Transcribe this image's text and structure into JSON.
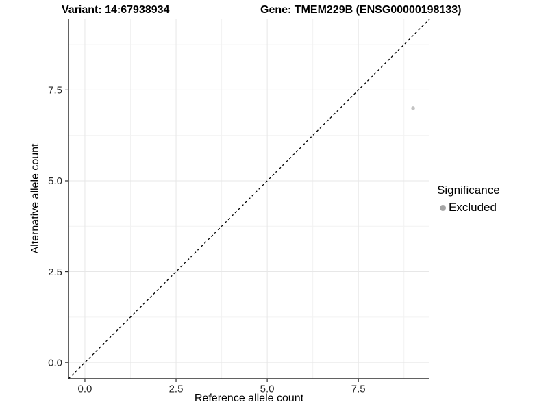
{
  "header": {
    "variant_title": "Variant: 14:67938934",
    "gene_title": "Gene: TMEM229B (ENSG00000198133)"
  },
  "axes": {
    "x_label": "Reference allele count",
    "y_label": "Alternative allele count",
    "x_tick_labels": [
      "0.0",
      "2.5",
      "5.0",
      "7.5"
    ],
    "y_tick_labels": [
      "0.0",
      "2.5",
      "5.0",
      "7.5"
    ]
  },
  "legend": {
    "title": "Significance",
    "items": [
      {
        "label": "Excluded",
        "color": "#a5a5a5"
      }
    ]
  },
  "colors": {
    "background": "#ffffff",
    "grid_major": "#e7e7e7",
    "grid_minor": "#f2f2f2",
    "axis_line": "#2e2e2e",
    "tick_mark": "#2e2e2e",
    "tick_text": "#262626",
    "point": "#c3c3c3",
    "reference_line": "#000000"
  },
  "chart_data": {
    "type": "scatter",
    "title": "Variant: 14:67938934 | Gene: TMEM229B (ENSG00000198133)",
    "xlabel": "Reference allele count",
    "ylabel": "Alternative allele count",
    "xlim": [
      -0.45,
      9.45
    ],
    "ylim": [
      -0.45,
      9.45
    ],
    "x_ticks": [
      0.0,
      2.5,
      5.0,
      7.5
    ],
    "y_ticks": [
      0.0,
      2.5,
      5.0,
      7.5
    ],
    "x_minor_ticks": [
      1.25,
      3.75,
      6.25,
      8.75
    ],
    "y_minor_ticks": [
      1.25,
      3.75,
      6.25,
      8.75
    ],
    "tick_label_decimals": 1,
    "grid": true,
    "legend_position": "right",
    "series": [
      {
        "name": "Excluded",
        "color": "#c3c3c3",
        "marker_radius": 2.8,
        "points": [
          {
            "x": 9,
            "y": 7
          }
        ]
      }
    ],
    "reference_line": {
      "equation": "y = x",
      "style": "dashed",
      "color": "#000000"
    }
  }
}
